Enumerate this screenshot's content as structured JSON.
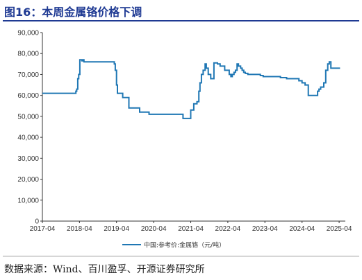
{
  "header": {
    "figure_label": "图16：",
    "title": "本周金属铬价格下调"
  },
  "footer": {
    "source": "数据来源：Wind、百川盈孚、开源证券研究所"
  },
  "colors": {
    "series": "#1f77b4",
    "title": "#1f3a93",
    "axis": "#333333"
  },
  "chart_data": {
    "type": "line",
    "title": "",
    "xlabel": "",
    "ylabel": "",
    "ylim": [
      0,
      90000
    ],
    "yticks": [
      0,
      10000,
      20000,
      30000,
      40000,
      50000,
      60000,
      70000,
      80000,
      90000
    ],
    "ytick_labels": [
      "0",
      "10,000",
      "20,000",
      "30,000",
      "40,000",
      "50,000",
      "60,000",
      "70,000",
      "80,000",
      "90,000"
    ],
    "xlim": [
      "2017-04",
      "2025-06"
    ],
    "xtick_labels": [
      "2017-04",
      "2018-04",
      "2019-04",
      "2020-04",
      "2021-04",
      "2022-04",
      "2023-04",
      "2024-04",
      "2025-04"
    ],
    "grid": false,
    "legend_position": "bottom-center",
    "series": [
      {
        "name": "中国:参考价:金属铬（元/吨）",
        "step": true,
        "x": [
          "2017-04-01",
          "2018-02-15",
          "2018-02-25",
          "2018-03-05",
          "2018-03-15",
          "2018-03-25",
          "2018-04-05",
          "2018-04-25",
          "2018-05-05",
          "2018-05-15",
          "2018-06-01",
          "2019-02-20",
          "2019-03-10",
          "2019-03-20",
          "2019-04-01",
          "2019-04-10",
          "2019-06-01",
          "2019-08-01",
          "2019-11-15",
          "2020-02-15",
          "2020-06-01",
          "2020-11-15",
          "2021-01-15",
          "2021-01-25",
          "2021-04-01",
          "2021-05-01",
          "2021-06-01",
          "2021-06-20",
          "2021-07-01",
          "2021-07-15",
          "2021-08-01",
          "2021-08-20",
          "2021-09-01",
          "2021-09-20",
          "2021-10-15",
          "2021-11-15",
          "2021-12-20",
          "2022-01-15",
          "2022-03-01",
          "2022-04-15",
          "2022-05-01",
          "2022-05-15",
          "2022-06-01",
          "2022-06-15",
          "2022-07-01",
          "2022-07-15",
          "2022-07-25",
          "2022-08-05",
          "2022-08-20",
          "2022-09-05",
          "2022-09-20",
          "2022-10-15",
          "2022-12-01",
          "2022-12-20",
          "2023-01-15",
          "2023-02-15",
          "2023-03-15",
          "2023-04-01",
          "2023-07-01",
          "2023-09-01",
          "2023-11-01",
          "2024-01-01",
          "2024-03-01",
          "2024-04-01",
          "2024-05-01",
          "2024-06-01",
          "2024-07-01",
          "2024-08-01",
          "2024-08-15",
          "2024-09-01",
          "2024-09-15",
          "2024-10-01",
          "2024-11-01",
          "2024-11-20",
          "2024-12-10",
          "2024-12-25",
          "2025-01-10",
          "2025-01-20",
          "2025-02-01",
          "2025-02-10",
          "2025-02-20",
          "2025-03-05",
          "2025-04-10"
        ],
        "y": [
          61000,
          61000,
          62000,
          63000,
          68000,
          70000,
          77000,
          76500,
          77000,
          76000,
          76000,
          76000,
          75000,
          72000,
          65000,
          61000,
          59000,
          54000,
          52000,
          51000,
          51000,
          51000,
          49000,
          49000,
          53000,
          56000,
          57000,
          62000,
          66000,
          70000,
          72000,
          75000,
          73000,
          70000,
          68000,
          75500,
          75000,
          74000,
          72000,
          70000,
          69000,
          70000,
          71000,
          72000,
          75000,
          74000,
          74000,
          73000,
          72000,
          71000,
          70500,
          70000,
          70000,
          70000,
          70000,
          69500,
          69000,
          69000,
          69000,
          68500,
          68000,
          68000,
          67000,
          66000,
          65000,
          60000,
          60000,
          60000,
          60000,
          62000,
          63000,
          64000,
          66000,
          72000,
          75000,
          76000,
          73000,
          73000,
          73000,
          73000,
          73000,
          73000,
          73000
        ]
      }
    ]
  }
}
